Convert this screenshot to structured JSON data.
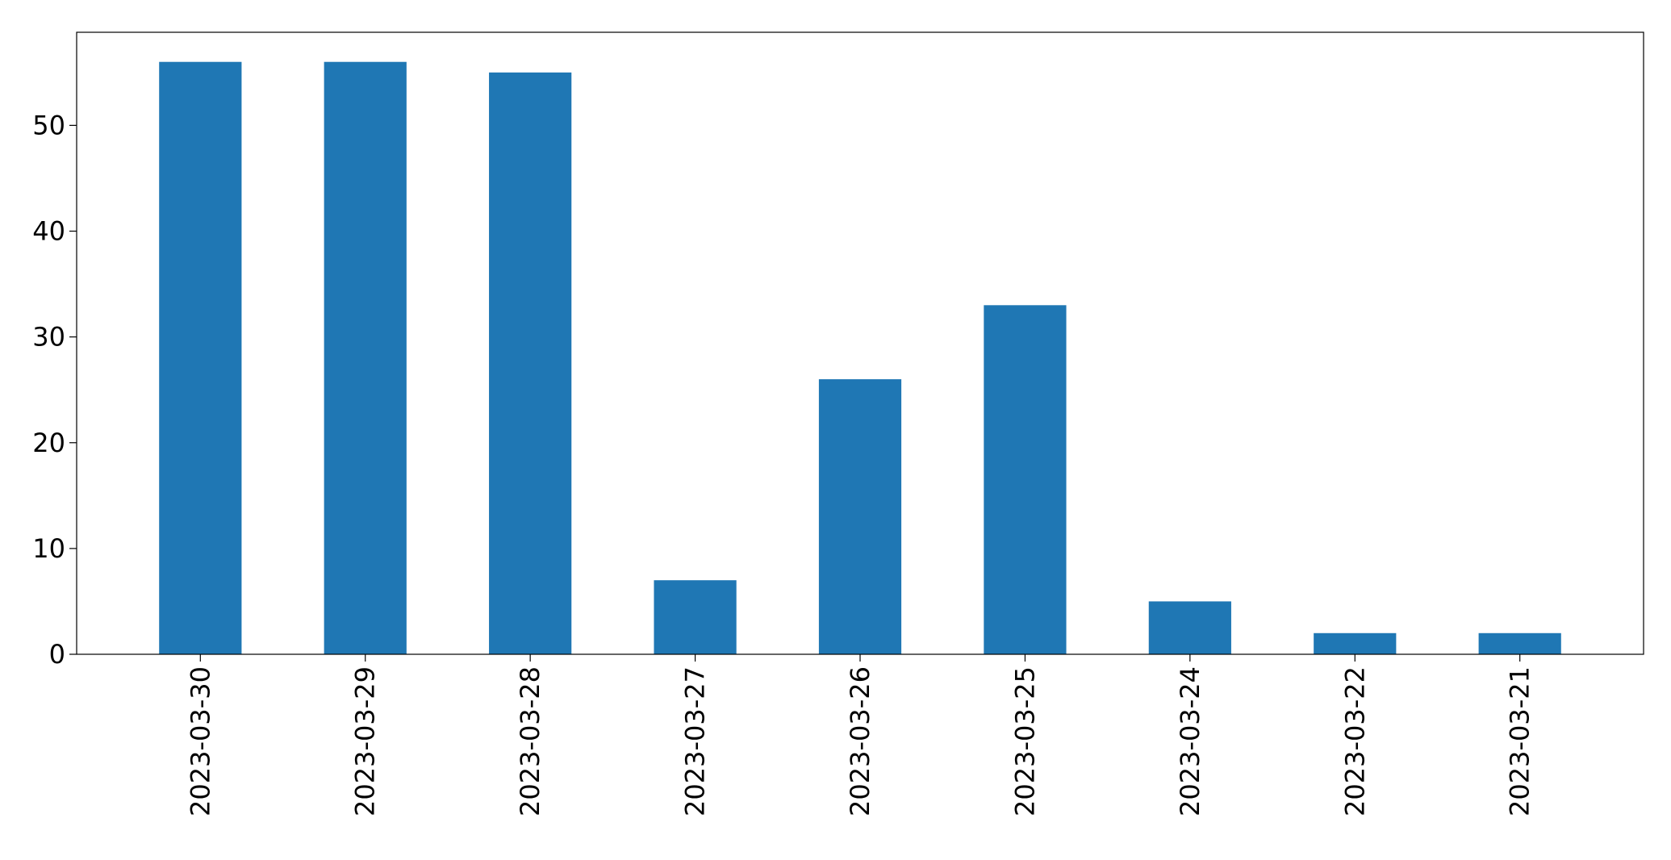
{
  "colors": {
    "bar": "#1f77b4",
    "axis": "#000000",
    "background": "#ffffff"
  },
  "chart_data": {
    "type": "bar",
    "title": "",
    "xlabel": "",
    "ylabel": "",
    "categories": [
      "2023-03-30",
      "2023-03-29",
      "2023-03-28",
      "2023-03-27",
      "2023-03-26",
      "2023-03-25",
      "2023-03-24",
      "2023-03-22",
      "2023-03-21"
    ],
    "values": [
      56,
      56,
      55,
      7,
      26,
      33,
      5,
      2,
      2
    ],
    "ylim": [
      0,
      58.8
    ],
    "yticks": [
      0,
      10,
      20,
      30,
      40,
      50
    ],
    "x_tick_rotation": "vertical",
    "grid": false,
    "legend": "none"
  }
}
